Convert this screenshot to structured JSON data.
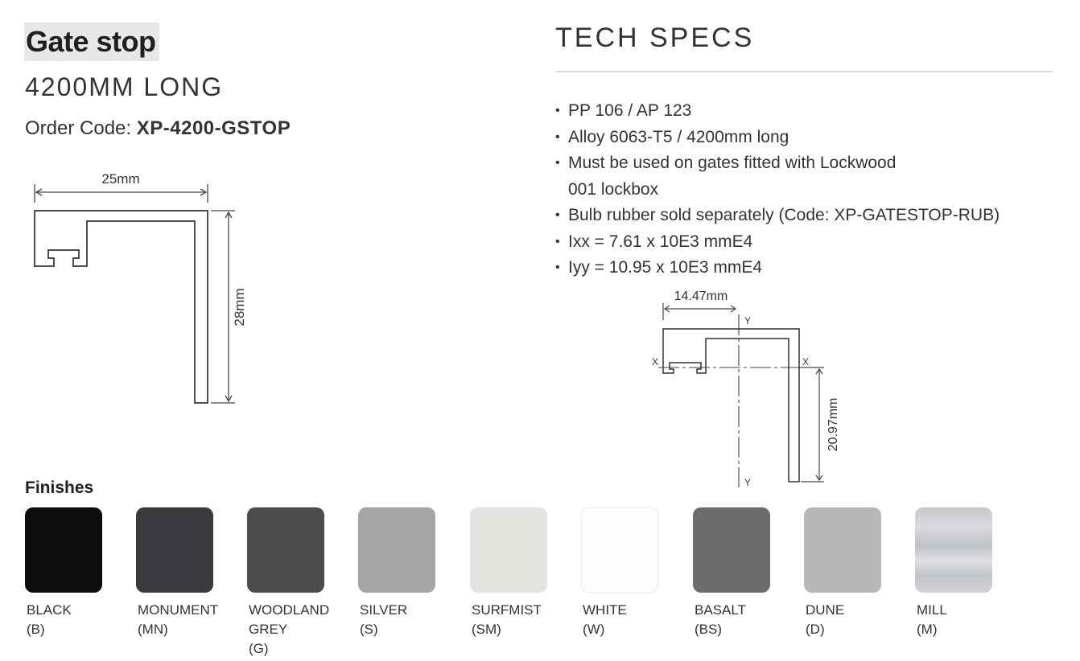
{
  "product": {
    "title": "Gate stop",
    "length": "4200MM LONG",
    "order_code_label": "Order Code:",
    "order_code": "XP-4200-GSTOP"
  },
  "profile_drawing": {
    "width_label": "25mm",
    "height_label": "28mm"
  },
  "tech_specs": {
    "heading": "TECH SPECS",
    "items": [
      {
        "text": "PP 106 / AP 123",
        "continuation": ""
      },
      {
        "text": "Alloy 6063-T5  /  4200mm long",
        "continuation": ""
      },
      {
        "text": "Must be used on gates fitted with Lockwood",
        "continuation": "001 lockbox"
      },
      {
        "text": "Bulb rubber sold separately (Code: XP-GATESTOP-RUB)",
        "continuation": ""
      },
      {
        "text": "Ixx = 7.61 x 10E3 mmE4",
        "continuation": ""
      },
      {
        "text": "Iyy = 10.95 x 10E3 mmE4",
        "continuation": ""
      }
    ]
  },
  "section_drawing": {
    "x_offset_label": "14.47mm",
    "y_offset_label": "20.97mm",
    "axis_x": "X",
    "axis_y": "Y"
  },
  "finishes": {
    "heading": "Finishes",
    "items": [
      {
        "name": "BLACK",
        "name2": "",
        "code": "(B)",
        "color": "#0d0d0f"
      },
      {
        "name": "MONUMENT",
        "name2": "",
        "code": "(MN)",
        "color": "#3a3b3e"
      },
      {
        "name": "WOODLAND",
        "name2": "GREY",
        "code": "(G)",
        "color": "#4b4d4c"
      },
      {
        "name": "SILVER",
        "name2": "",
        "code": "(S)",
        "color": "#a4a5a6"
      },
      {
        "name": "SURFMIST",
        "name2": "",
        "code": "(SM)",
        "color": "#e4e4e0"
      },
      {
        "name": "WHITE",
        "name2": "",
        "code": "(W)",
        "color": "#fdfdfd"
      },
      {
        "name": "BASALT",
        "name2": "",
        "code": "(BS)",
        "color": "#6c6d6f"
      },
      {
        "name": "DUNE",
        "name2": "",
        "code": "(D)",
        "color": "#b9b8b6"
      },
      {
        "name": "MILL",
        "name2": "",
        "code": "(M)",
        "color": "#c9ccd0"
      }
    ]
  }
}
